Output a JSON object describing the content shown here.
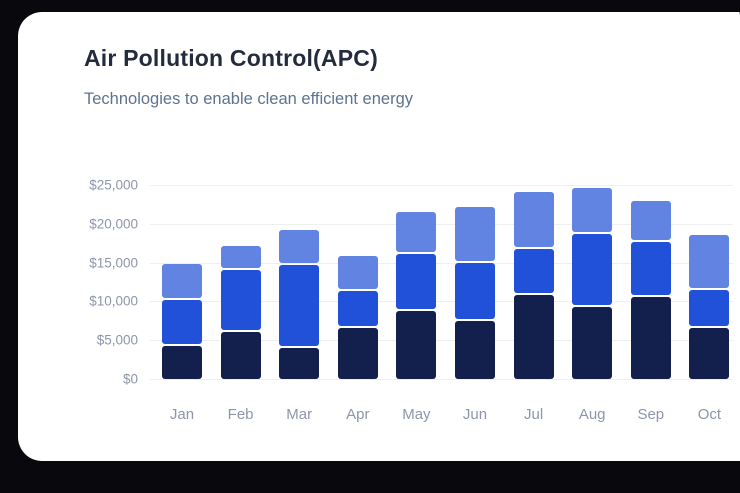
{
  "card": {
    "title": "Air Pollution Control(APC)",
    "subtitle": "Technologies to enable clean efficient energy"
  },
  "chart_data": {
    "type": "bar",
    "stacked": true,
    "title": "Air Pollution Control(APC)",
    "subtitle": "Technologies to enable clean efficient energy",
    "categories": [
      "Jan",
      "Feb",
      "Mar",
      "Apr",
      "May",
      "Jun",
      "Jul",
      "Aug",
      "Sep",
      "Oct"
    ],
    "series": [
      {
        "name": "dark-navy-series",
        "color": "#13204e",
        "values": [
          4400,
          6300,
          4100,
          6800,
          9000,
          7700,
          11000,
          9500,
          10800,
          6800
        ]
      },
      {
        "name": "blue-series",
        "color": "#2151d9",
        "values": [
          5900,
          7900,
          10700,
          4700,
          7300,
          7400,
          5800,
          9300,
          7000,
          4700
        ]
      },
      {
        "name": "light-blue-series",
        "color": "#6184e3",
        "values": [
          4500,
          3000,
          4400,
          4400,
          5200,
          7100,
          7300,
          5800,
          5200,
          7100
        ]
      }
    ],
    "totals": [
      14800,
      17200,
      19200,
      15900,
      21500,
      22200,
      24100,
      24600,
      23000,
      18600
    ],
    "ylim": [
      0,
      25000
    ],
    "ytick_step": 5000,
    "ytick_labels": [
      "$0",
      "$5,000",
      "$10,000",
      "$15,000",
      "$20,000",
      "$25,000"
    ],
    "xlabel": "",
    "ylabel": "",
    "grid": true,
    "legend": "none"
  },
  "colors": {
    "backdrop": "#08080d",
    "card_background": "#ffffff",
    "title_text": "#232b3c",
    "subtitle_text": "#5d7391",
    "axis_text": "#8d96a9",
    "gridline": "#edeff3",
    "segment_gap": "#ffffff"
  }
}
